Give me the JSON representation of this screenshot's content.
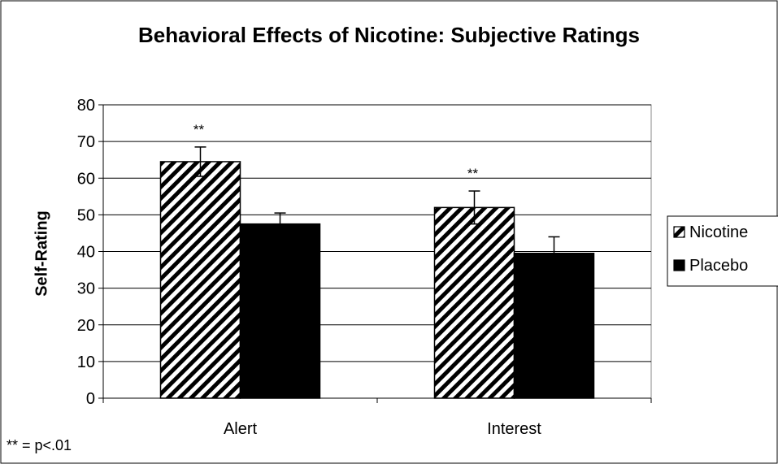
{
  "chart_data": {
    "type": "bar",
    "title": "Behavioral Effects of Nicotine: Subjective Ratings",
    "xlabel": "",
    "ylabel": "Self-Rating",
    "ylim": [
      0,
      80
    ],
    "yticks": [
      0,
      10,
      20,
      30,
      40,
      50,
      60,
      70,
      80
    ],
    "grid": true,
    "legend_position": "right",
    "categories": [
      "Alert",
      "Interest"
    ],
    "series": [
      {
        "name": "Nicotine",
        "pattern": "diagonal-hatch",
        "color": "#000000",
        "values": [
          64.5,
          52
        ],
        "error": [
          4,
          4.5
        ]
      },
      {
        "name": "Placebo",
        "pattern": "solid",
        "color": "#000000",
        "values": [
          47.5,
          39.5
        ],
        "error": [
          3,
          4.5
        ]
      }
    ],
    "annotations": [
      {
        "category": "Alert",
        "series": "Nicotine",
        "text": "**"
      },
      {
        "category": "Interest",
        "series": "Nicotine",
        "text": "**"
      }
    ],
    "footnote": "** = p<.01"
  }
}
